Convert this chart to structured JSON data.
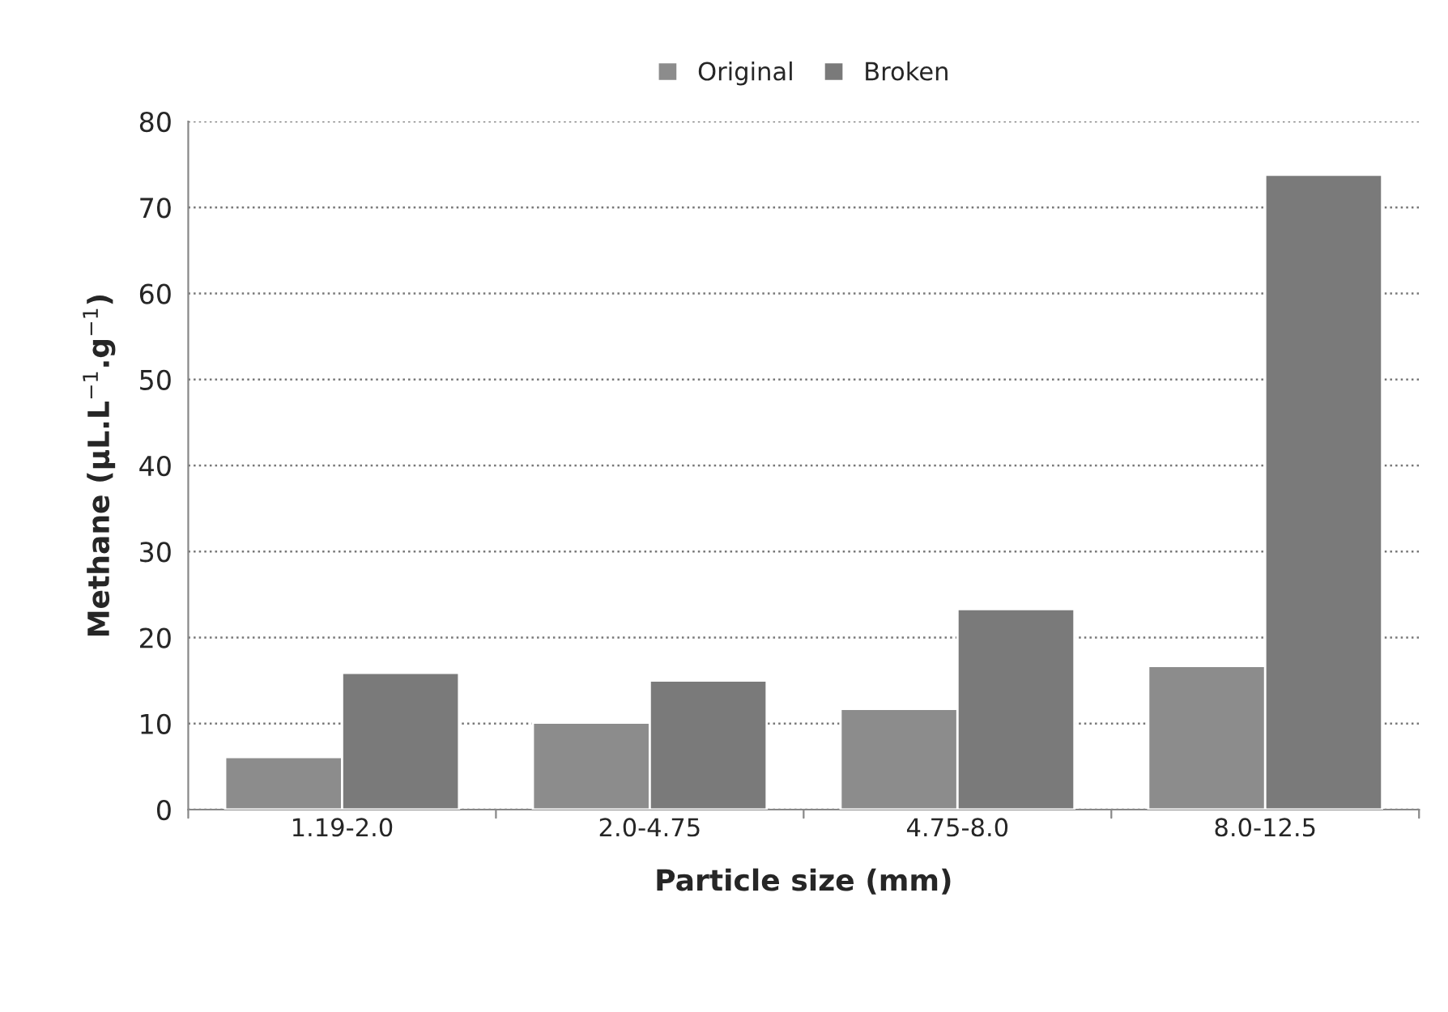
{
  "chart_data": {
    "type": "bar",
    "xlabel": "Particle size (mm)",
    "ylabel": "Methane (µL.L$^{−1}$.g$^{−1}$)",
    "categories": [
      "1.19-2.0",
      "2.0-4.75",
      "4.75-8.0",
      "8.0-12.5"
    ],
    "series": [
      {
        "name": "Original",
        "color": "#8c8c8c",
        "values": [
          6.1,
          10.1,
          11.7,
          16.7
        ]
      },
      {
        "name": "Broken",
        "color": "#7a7a7a",
        "values": [
          15.9,
          15.0,
          23.3,
          73.8
        ]
      }
    ],
    "ylim": [
      0,
      80
    ],
    "yticks": [
      0,
      10,
      20,
      30,
      40,
      50,
      60,
      70,
      80
    ],
    "grid": "y",
    "legend": "top"
  }
}
